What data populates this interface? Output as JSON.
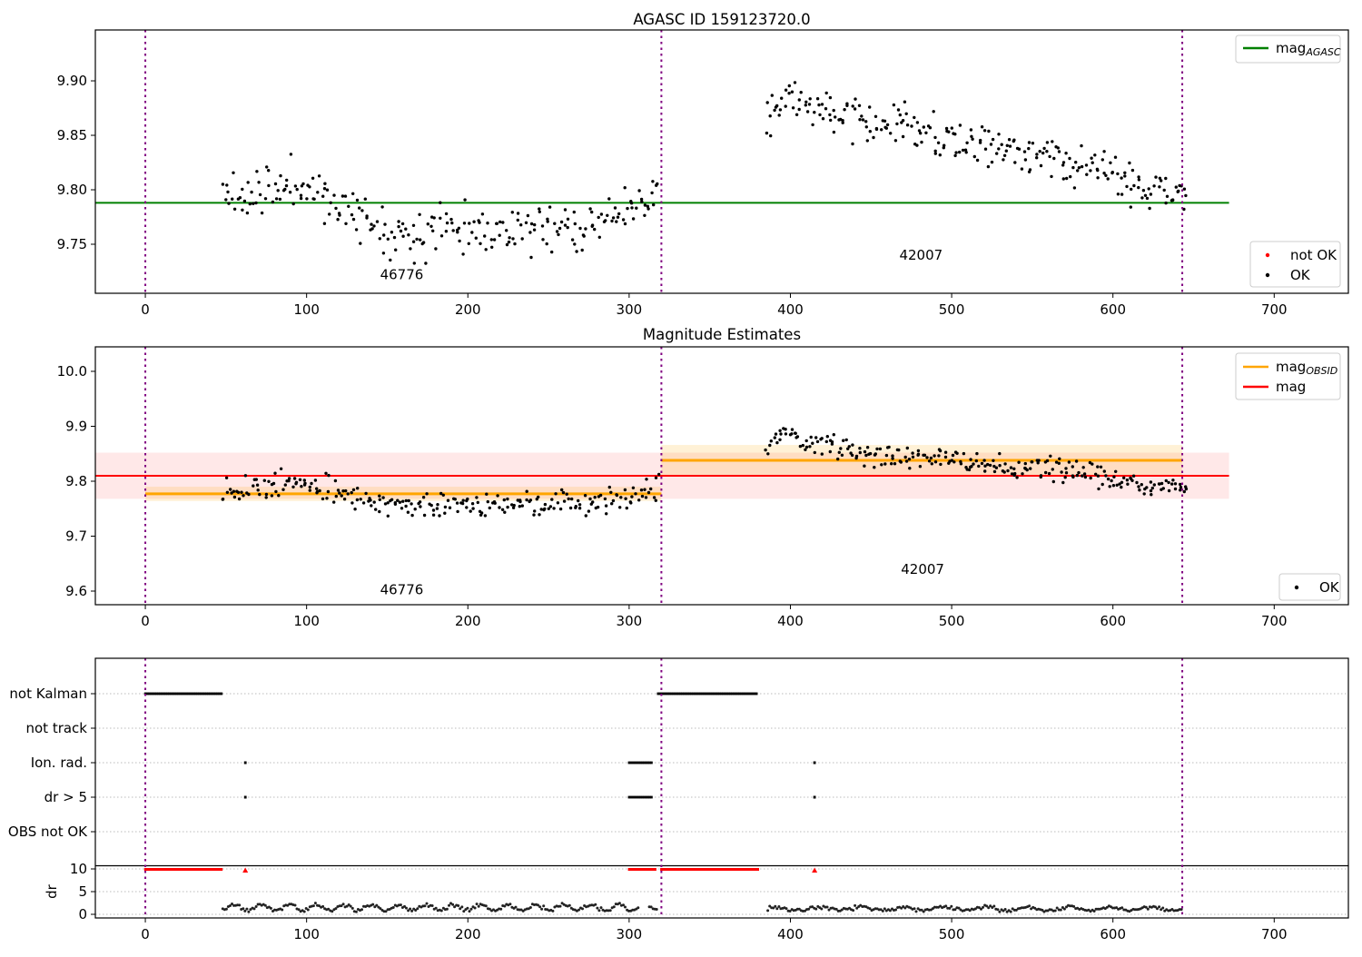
{
  "figure_title": "AGASC ID 159123720.0",
  "colors": {
    "agasc_line": "#008000",
    "obsid_line": "#ffa500",
    "mag_line": "#ff0000",
    "mag_band": "rgba(255,0,0,0.09)",
    "obsid_band": "rgba(255,165,0,0.16)",
    "vline": "#800080",
    "point": "#000000",
    "not_ok": "#ff0000",
    "grid": "#bbbbbb"
  },
  "chart_data": [
    {
      "type": "scatter",
      "title": "AGASC ID 159123720.0",
      "xlim": [
        -31,
        746
      ],
      "ylim": [
        9.705,
        9.9467
      ],
      "xticks": {
        "values": [
          0,
          100,
          200,
          300,
          400,
          500,
          600,
          700
        ],
        "labels": [
          "0",
          "100",
          "200",
          "300",
          "400",
          "500",
          "600",
          "700"
        ]
      },
      "yticks": {
        "values": [
          9.75,
          9.8,
          9.85,
          9.9
        ],
        "labels": [
          "9.75",
          "9.80",
          "9.85",
          "9.90"
        ]
      },
      "vlines": [
        0,
        320,
        643
      ],
      "hlines": [
        {
          "name": "agasc-mag-line",
          "value": 9.788,
          "x0": -31,
          "x1": 672,
          "color": "#008000",
          "w": 2
        }
      ],
      "bands": [],
      "annotations": [
        {
          "text": "46776",
          "x": 159,
          "y": 9.718
        },
        {
          "text": "42007",
          "x": 481,
          "y": 9.736
        }
      ],
      "legends": [
        {
          "entries": [
            {
              "marker": "line",
              "color": "#008000",
              "label": "mag",
              "sub": "AGASC"
            }
          ]
        },
        {
          "entries": [
            {
              "marker": "dot",
              "color": "#ff0000",
              "label": "not OK"
            },
            {
              "marker": "dot",
              "color": "#000000",
              "label": "OK"
            }
          ]
        }
      ],
      "clusters": [
        {
          "name": "obsid-46776-points",
          "x0": 48,
          "x1": 318,
          "n": 240,
          "sigma": 0.011,
          "seed": 11,
          "trend": [
            [
              48,
              9.8
            ],
            [
              58,
              9.793
            ],
            [
              68,
              9.796
            ],
            [
              80,
              9.802
            ],
            [
              92,
              9.806
            ],
            [
              102,
              9.8
            ],
            [
              112,
              9.793
            ],
            [
              125,
              9.781
            ],
            [
              138,
              9.772
            ],
            [
              152,
              9.764
            ],
            [
              165,
              9.757
            ],
            [
              178,
              9.763
            ],
            [
              192,
              9.769
            ],
            [
              205,
              9.765
            ],
            [
              218,
              9.76
            ],
            [
              232,
              9.765
            ],
            [
              245,
              9.762
            ],
            [
              258,
              9.769
            ],
            [
              272,
              9.765
            ],
            [
              285,
              9.774
            ],
            [
              298,
              9.777
            ],
            [
              310,
              9.785
            ],
            [
              318,
              9.798
            ]
          ]
        },
        {
          "name": "obsid-42007-points",
          "x0": 385,
          "x1": 646,
          "n": 245,
          "sigma": 0.01,
          "seed": 22,
          "trend": [
            [
              385,
              9.868
            ],
            [
              391,
              9.882
            ],
            [
              397,
              9.893
            ],
            [
              404,
              9.884
            ],
            [
              412,
              9.877
            ],
            [
              421,
              9.871
            ],
            [
              431,
              9.874
            ],
            [
              441,
              9.866
            ],
            [
              452,
              9.86
            ],
            [
              463,
              9.866
            ],
            [
              476,
              9.854
            ],
            [
              489,
              9.847
            ],
            [
              501,
              9.85
            ],
            [
              513,
              9.84
            ],
            [
              526,
              9.842
            ],
            [
              539,
              9.834
            ],
            [
              551,
              9.829
            ],
            [
              563,
              9.831
            ],
            [
              576,
              9.824
            ],
            [
              589,
              9.818
            ],
            [
              601,
              9.81
            ],
            [
              613,
              9.805
            ],
            [
              626,
              9.799
            ],
            [
              636,
              9.792
            ],
            [
              646,
              9.796
            ]
          ]
        }
      ]
    },
    {
      "type": "scatter",
      "title": "Magnitude Estimates",
      "xlim": [
        -31,
        746
      ],
      "ylim": [
        9.5752,
        10.0446
      ],
      "xticks": {
        "values": [
          0,
          100,
          200,
          300,
          400,
          500,
          600,
          700
        ],
        "labels": [
          "0",
          "100",
          "200",
          "300",
          "400",
          "500",
          "600",
          "700"
        ]
      },
      "yticks": {
        "values": [
          9.6,
          9.7,
          9.8,
          9.9,
          10.0
        ],
        "labels": [
          "9.6",
          "9.7",
          "9.8",
          "9.9",
          "10.0"
        ]
      },
      "vlines": [
        0,
        320,
        643
      ],
      "hlines": [
        {
          "name": "obsid-mag-line-46776",
          "value": 9.777,
          "x0": 0,
          "x1": 320,
          "color": "#ffa500",
          "w": 3
        },
        {
          "name": "obsid-mag-line-42007",
          "value": 9.838,
          "x0": 320,
          "x1": 643,
          "color": "#ffa500",
          "w": 3
        },
        {
          "name": "mag-line",
          "value": 9.81,
          "x0": -31,
          "x1": 672,
          "color": "#ff0000",
          "w": 2
        }
      ],
      "bands": [
        {
          "name": "mag-error-band",
          "x0": -31,
          "x1": 672,
          "y0": 9.768,
          "y1": 9.852,
          "color": "rgba(255,0,0,0.09)"
        },
        {
          "name": "obsid-error-band-46776",
          "x0": 0,
          "x1": 320,
          "y0": 9.764,
          "y1": 9.79,
          "color": "rgba(255,165,0,0.16)"
        },
        {
          "name": "obsid-error-band-42007",
          "x0": 320,
          "x1": 643,
          "y0": 9.81,
          "y1": 9.866,
          "color": "rgba(255,165,0,0.16)"
        }
      ],
      "annotations": [
        {
          "text": "46776",
          "x": 159,
          "y": 9.594
        },
        {
          "text": "42007",
          "x": 482,
          "y": 9.631
        }
      ],
      "legends": [
        {
          "entries": [
            {
              "marker": "line",
              "color": "#ffa500",
              "label": "mag",
              "sub": "OBSID"
            },
            {
              "marker": "line",
              "color": "#ff0000",
              "label": "mag"
            }
          ]
        },
        {
          "entries": [
            {
              "marker": "dot",
              "color": "#000000",
              "label": "OK"
            }
          ]
        }
      ],
      "clusters": [
        {
          "name": "obsid-46776-points",
          "x0": 48,
          "x1": 318,
          "n": 240,
          "sigma": 0.011,
          "seed": 13,
          "trend": [
            [
              48,
              9.79
            ],
            [
              60,
              9.784
            ],
            [
              72,
              9.788
            ],
            [
              84,
              9.794
            ],
            [
              96,
              9.797
            ],
            [
              108,
              9.789
            ],
            [
              120,
              9.78
            ],
            [
              134,
              9.77
            ],
            [
              148,
              9.762
            ],
            [
              162,
              9.752
            ],
            [
              176,
              9.758
            ],
            [
              190,
              9.764
            ],
            [
              204,
              9.758
            ],
            [
              218,
              9.753
            ],
            [
              232,
              9.758
            ],
            [
              246,
              9.755
            ],
            [
              260,
              9.762
            ],
            [
              274,
              9.759
            ],
            [
              288,
              9.768
            ],
            [
              302,
              9.772
            ],
            [
              312,
              9.778
            ],
            [
              318,
              9.79
            ]
          ]
        },
        {
          "name": "obsid-42007-points",
          "x0": 385,
          "x1": 646,
          "n": 245,
          "sigma": 0.01,
          "seed": 24,
          "trend": [
            [
              385,
              9.86
            ],
            [
              391,
              9.876
            ],
            [
              397,
              9.888
            ],
            [
              404,
              9.878
            ],
            [
              413,
              9.87
            ],
            [
              424,
              9.866
            ],
            [
              436,
              9.858
            ],
            [
              450,
              9.852
            ],
            [
              464,
              9.846
            ],
            [
              478,
              9.841
            ],
            [
              492,
              9.843
            ],
            [
              506,
              9.835
            ],
            [
              520,
              9.837
            ],
            [
              534,
              9.828
            ],
            [
              548,
              9.822
            ],
            [
              562,
              9.824
            ],
            [
              576,
              9.817
            ],
            [
              590,
              9.81
            ],
            [
              604,
              9.801
            ],
            [
              618,
              9.794
            ],
            [
              630,
              9.787
            ],
            [
              646,
              9.791
            ]
          ]
        }
      ]
    },
    {
      "type": "status",
      "title": "",
      "xlim": [
        -31,
        746
      ],
      "xticks": {
        "values": [
          0,
          100,
          200,
          300,
          400,
          500,
          600,
          700
        ],
        "labels": [
          "0",
          "100",
          "200",
          "300",
          "400",
          "500",
          "600",
          "700"
        ]
      },
      "vlines": [
        0,
        320,
        643
      ],
      "rows": {
        "labels": [
          "not Kalman",
          "not track",
          "Ion. rad.",
          "dr > 5",
          "OBS not OK"
        ],
        "segments": [
          [
            [
              0,
              48
            ],
            [
              318,
              380
            ]
          ],
          [],
          [
            [
              300,
              314
            ]
          ],
          [
            [
              300,
              314
            ]
          ],
          []
        ],
        "points": [
          [],
          [],
          [
            62,
            415
          ],
          [
            62,
            415
          ],
          []
        ]
      },
      "dr": {
        "label": "dr",
        "tick_values": [
          10,
          5,
          0
        ],
        "tick_labels": [
          "10",
          "5",
          "0"
        ],
        "threshold_line": 10.7,
        "red_value": 9.9,
        "red_segments": [
          [
            0,
            48
          ],
          [
            300,
            317
          ],
          [
            320,
            380
          ]
        ],
        "red_triangles": [
          62,
          415
        ],
        "trace": [
          {
            "x0": 48,
            "x1": 306,
            "base": 1.5,
            "amp": 1.0,
            "period": 17,
            "phase": 0,
            "seed": 5
          },
          {
            "x0": 312.5,
            "x1": 318,
            "base": 1.5,
            "amp": 1.0,
            "period": 17,
            "phase": 0,
            "seed": 6
          },
          {
            "x0": 386,
            "x1": 643,
            "base": 1.2,
            "amp": 0.65,
            "period": 26,
            "phase": 1.3,
            "seed": 7
          }
        ]
      }
    }
  ]
}
